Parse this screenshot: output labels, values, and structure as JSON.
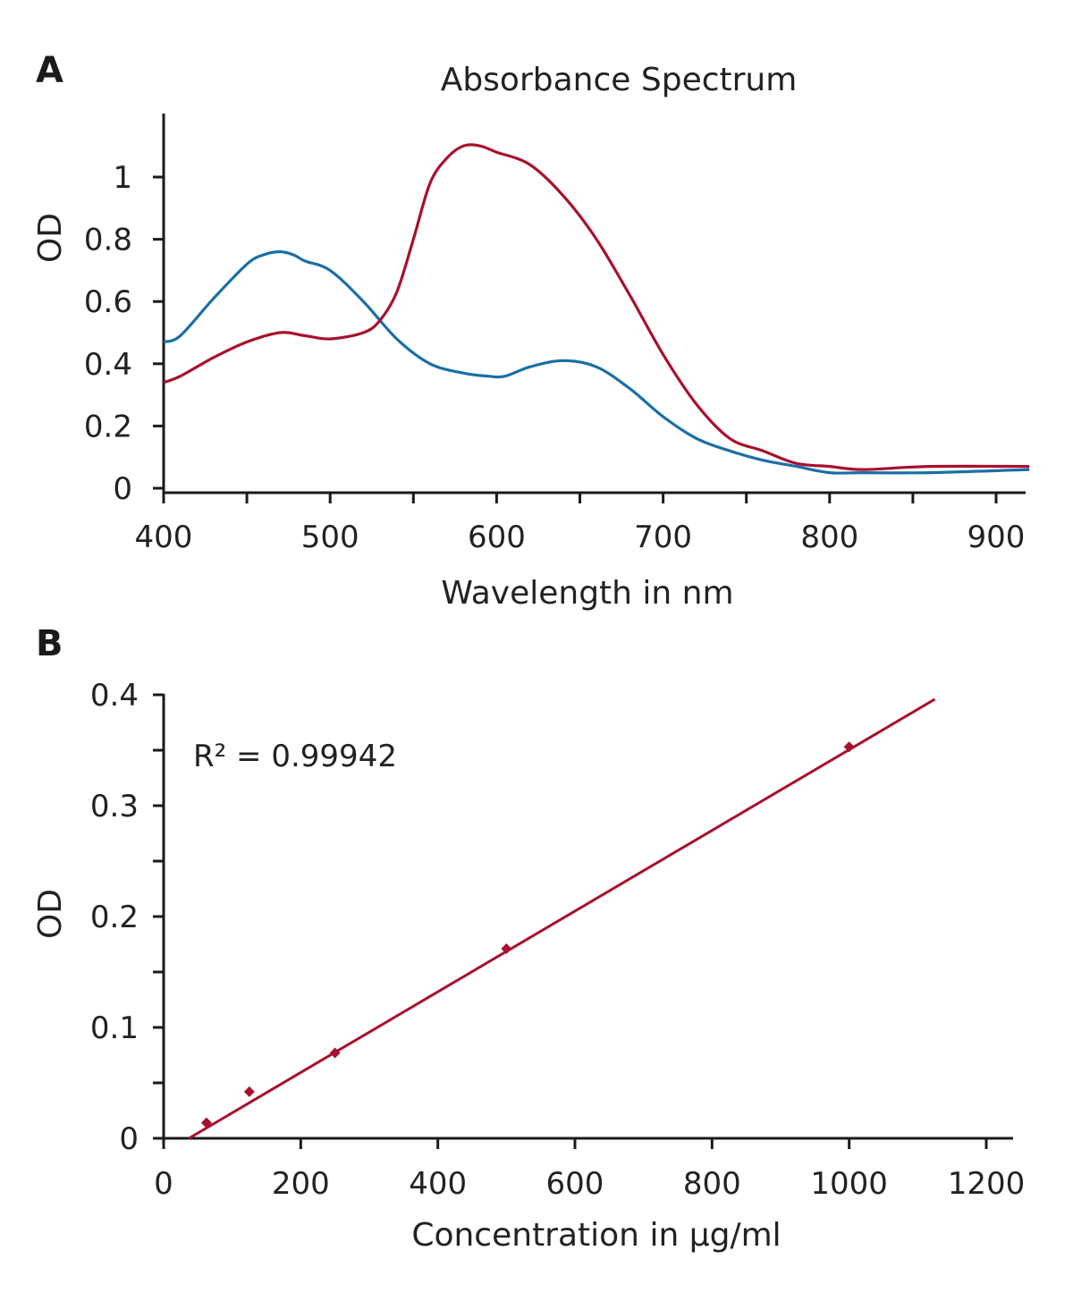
{
  "chart_data": [
    {
      "panel": "A",
      "type": "line",
      "title": "Absorbance Spectrum",
      "xlabel": "Wavelength in nm",
      "ylabel": "OD",
      "xlim": [
        400,
        920
      ],
      "ylim": [
        0,
        1.2
      ],
      "x_ticks": [
        "400",
        "500",
        "600",
        "700",
        "800",
        "900"
      ],
      "y_ticks": [
        "0",
        "0.2",
        "0.4",
        "0.6",
        "0.8",
        "1"
      ],
      "grid": false,
      "series": [
        {
          "color": "#1a6fa6",
          "x": [
            400,
            410,
            430,
            450,
            460,
            470,
            478,
            485,
            500,
            520,
            540,
            560,
            580,
            595,
            605,
            620,
            640,
            660,
            680,
            700,
            720,
            740,
            760,
            780,
            800,
            820,
            860,
            920
          ],
          "y": [
            0.47,
            0.49,
            0.61,
            0.72,
            0.75,
            0.76,
            0.75,
            0.73,
            0.7,
            0.6,
            0.48,
            0.4,
            0.37,
            0.36,
            0.36,
            0.39,
            0.41,
            0.39,
            0.32,
            0.23,
            0.16,
            0.12,
            0.09,
            0.07,
            0.05,
            0.05,
            0.05,
            0.06
          ]
        },
        {
          "color": "#a8102e",
          "x": [
            400,
            410,
            430,
            450,
            470,
            485,
            500,
            520,
            530,
            540,
            550,
            560,
            570,
            580,
            590,
            600,
            620,
            640,
            660,
            680,
            700,
            720,
            740,
            760,
            780,
            800,
            820,
            860,
            920
          ],
          "y": [
            0.34,
            0.36,
            0.42,
            0.47,
            0.5,
            0.49,
            0.48,
            0.5,
            0.54,
            0.63,
            0.8,
            0.98,
            1.06,
            1.1,
            1.1,
            1.08,
            1.04,
            0.94,
            0.8,
            0.62,
            0.43,
            0.27,
            0.16,
            0.12,
            0.08,
            0.07,
            0.06,
            0.07,
            0.07
          ]
        }
      ]
    },
    {
      "panel": "B",
      "type": "scatter",
      "xlabel": "Concentration in µg/ml",
      "ylabel": "OD",
      "xlim": [
        0,
        1200
      ],
      "ylim": [
        0,
        0.4
      ],
      "x_ticks": [
        "0",
        "200",
        "400",
        "600",
        "800",
        "1000",
        "1200"
      ],
      "y_ticks": [
        "0",
        "0.1",
        "0.2",
        "0.3",
        "0.4"
      ],
      "grid": false,
      "annotation": "R² = 0.99942",
      "series": [
        {
          "color": "#a8102e",
          "x": [
            62.5,
            125,
            250,
            500,
            1000
          ],
          "y": [
            0.014,
            0.042,
            0.077,
            0.171,
            0.353
          ],
          "trendline": {
            "x": [
              37,
              1125
            ],
            "y": [
              0,
              0.396
            ]
          }
        }
      ]
    }
  ]
}
